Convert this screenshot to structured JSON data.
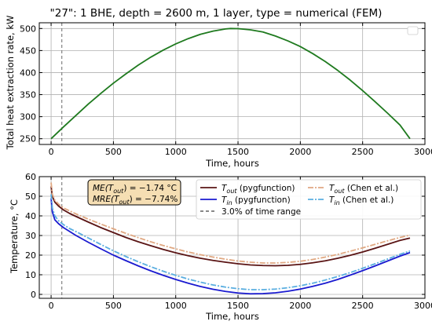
{
  "figure": {
    "title": "\"27\": 1 BHE, depth = 2600 m, 1 layer, type = numerical (FEM)"
  },
  "chart_data": [
    {
      "type": "line",
      "xlabel": "Time, hours",
      "ylabel": "Total heat extraction rate, kW",
      "xlim": [
        -95,
        3000
      ],
      "ylim": [
        237,
        513
      ],
      "xticks": [
        0,
        500,
        1000,
        1500,
        2000,
        2500,
        3000
      ],
      "yticks": [
        250,
        300,
        350,
        400,
        450,
        500
      ],
      "grid": true,
      "vline_x": 86,
      "series": [
        {
          "color": "#1f7a1f",
          "x": [
            0,
            100,
            200,
            300,
            400,
            500,
            600,
            700,
            800,
            900,
            1000,
            1100,
            1200,
            1300,
            1400,
            1440,
            1500,
            1600,
            1700,
            1800,
            1900,
            2000,
            2100,
            2200,
            2300,
            2400,
            2500,
            2600,
            2700,
            2800,
            2880
          ],
          "y": [
            250,
            277,
            303,
            329,
            353,
            376,
            397,
            417,
            435,
            451,
            465,
            477,
            487,
            494,
            499,
            500,
            499.7,
            497,
            492,
            483,
            472,
            459,
            443,
            425,
            405,
            383,
            359,
            334,
            308,
            281,
            250
          ]
        }
      ]
    },
    {
      "type": "line",
      "xlabel": "Time, hours",
      "ylabel": "Temperature, °C",
      "xlim": [
        -95,
        3000
      ],
      "ylim": [
        -2,
        60
      ],
      "xticks": [
        0,
        500,
        1000,
        1500,
        2000,
        2500,
        3000
      ],
      "yticks": [
        0,
        10,
        20,
        30,
        40,
        50,
        60
      ],
      "grid": true,
      "vline_x": 86,
      "annotation": {
        "line1": "ME(T",
        "line1_sub": "out",
        "line1_rest": ") = −1.74 °C",
        "line2": "MRE(T",
        "line2_sub": "out",
        "line2_rest": ") = −7.74%"
      },
      "legend": {
        "position": "upper-right",
        "entries": [
          {
            "main": "T",
            "sub": "out",
            "rest": " (pygfunction)",
            "color": "#5a1414",
            "dash": ""
          },
          {
            "main": "T",
            "sub": "in",
            "rest": " (pygfunction)",
            "color": "#1a1ad0",
            "dash": ""
          },
          {
            "main": "3.0% of time range",
            "sub": "",
            "rest": "",
            "color": "#777777",
            "dash": "4,3"
          },
          {
            "main": "T",
            "sub": "out",
            "rest": " (Chen et al.)",
            "color": "#e0a882",
            "dash": "7,2,2,2"
          },
          {
            "main": "T",
            "sub": "in",
            "rest": " (Chen et al.)",
            "color": "#5aaee0",
            "dash": "7,2,2,2"
          }
        ]
      },
      "series": [
        {
          "color": "#5a1414",
          "dash": "",
          "x": [
            0,
            10,
            30,
            60,
            100,
            150,
            200,
            300,
            400,
            500,
            600,
            700,
            800,
            900,
            1000,
            1100,
            1200,
            1300,
            1400,
            1500,
            1600,
            1700,
            1800,
            1900,
            2000,
            2100,
            2200,
            2300,
            2400,
            2500,
            2600,
            2700,
            2800,
            2880
          ],
          "y": [
            55,
            50,
            47,
            45,
            43,
            41.2,
            39.7,
            36.8,
            34.0,
            31.5,
            29.0,
            26.8,
            24.8,
            22.9,
            21.2,
            19.7,
            18.4,
            17.3,
            16.4,
            15.6,
            15.0,
            14.7,
            14.6,
            14.8,
            15.3,
            16.1,
            17.1,
            18.4,
            19.9,
            21.6,
            23.5,
            25.5,
            27.5,
            28.7
          ]
        },
        {
          "color": "#1a1ad0",
          "dash": "",
          "x": [
            0,
            10,
            30,
            60,
            100,
            150,
            200,
            300,
            400,
            500,
            600,
            700,
            800,
            900,
            1000,
            1100,
            1200,
            1300,
            1400,
            1500,
            1600,
            1700,
            1800,
            1900,
            2000,
            2100,
            2200,
            2300,
            2400,
            2500,
            2600,
            2700,
            2800,
            2880
          ],
          "y": [
            49,
            42,
            38,
            36,
            34,
            32,
            30,
            26.5,
            23.2,
            20.0,
            17.2,
            14.5,
            12.0,
            9.7,
            7.6,
            5.7,
            4.0,
            2.6,
            1.5,
            0.7,
            0.3,
            0.4,
            0.8,
            1.6,
            2.7,
            4.1,
            5.7,
            7.6,
            9.8,
            12.1,
            14.5,
            17.0,
            19.5,
            21.3
          ]
        },
        {
          "color": "#e0a882",
          "dash": "7,2,2,2",
          "x": [
            0,
            10,
            30,
            60,
            100,
            150,
            200,
            300,
            400,
            500,
            600,
            700,
            800,
            900,
            1000,
            1100,
            1200,
            1300,
            1400,
            1500,
            1600,
            1700,
            1800,
            1900,
            2000,
            2100,
            2200,
            2300,
            2400,
            2500,
            2600,
            2700,
            2800,
            2880
          ],
          "y": [
            57,
            51,
            48,
            46,
            44,
            42.5,
            41,
            38.3,
            35.8,
            33.4,
            31.1,
            28.9,
            26.8,
            24.9,
            23.2,
            21.6,
            20.2,
            19.0,
            17.9,
            17.0,
            16.4,
            16.0,
            16.0,
            16.3,
            16.9,
            17.8,
            19.0,
            20.4,
            22.0,
            23.7,
            25.5,
            27.3,
            29.0,
            30.2
          ]
        },
        {
          "color": "#5aaee0",
          "dash": "7,2,2,2",
          "x": [
            0,
            10,
            30,
            60,
            100,
            150,
            200,
            300,
            400,
            500,
            600,
            700,
            800,
            900,
            1000,
            1100,
            1200,
            1300,
            1400,
            1500,
            1600,
            1700,
            1800,
            1900,
            2000,
            2100,
            2200,
            2300,
            2400,
            2500,
            2600,
            2700,
            2800,
            2880
          ],
          "y": [
            51,
            44,
            40,
            37.5,
            35.5,
            33.5,
            32,
            28.7,
            25.4,
            22.2,
            19.3,
            16.6,
            14.1,
            11.8,
            9.7,
            7.8,
            6.2,
            4.8,
            3.7,
            2.9,
            2.4,
            2.4,
            2.7,
            3.4,
            4.4,
            5.7,
            7.3,
            9.1,
            11.1,
            13.3,
            15.6,
            18.0,
            20.4,
            22.1
          ]
        }
      ]
    }
  ]
}
